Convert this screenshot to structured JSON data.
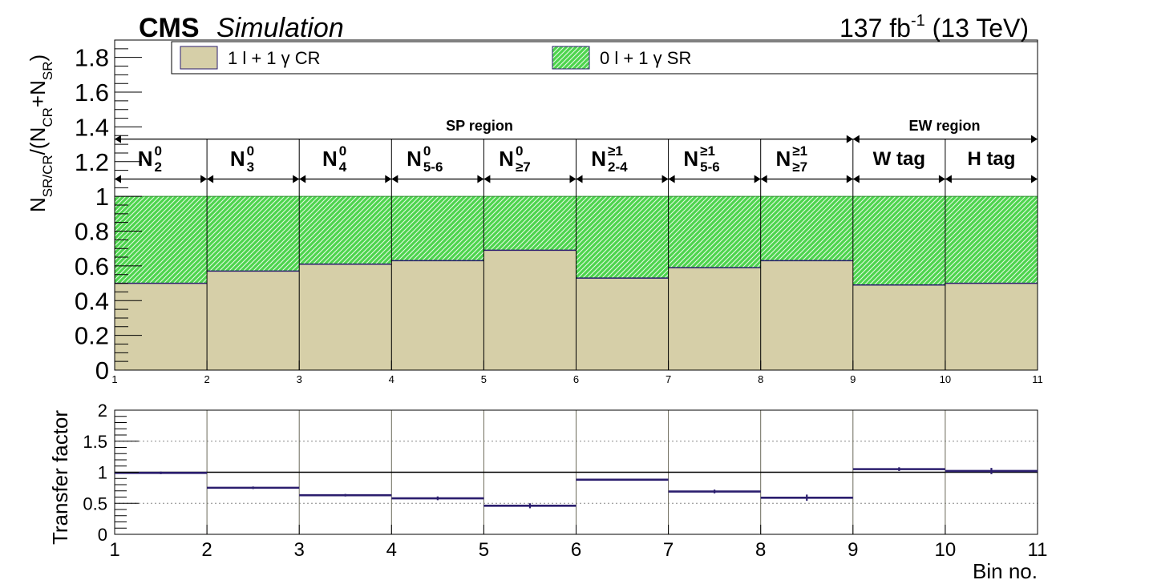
{
  "header": {
    "cms": "CMS",
    "simulation": "Simulation",
    "lumi_base": "137 fb",
    "lumi_sup": "-1",
    "lumi_energy": " (13 TeV)"
  },
  "legend": {
    "cr_label": "1 l + 1 γ CR",
    "sr_label": "0 l + 1 γ SR"
  },
  "regions": {
    "sp": "SP region",
    "ew": "EW region"
  },
  "bin_labels": [
    {
      "base": "N",
      "sup": "0",
      "sub": "2"
    },
    {
      "base": "N",
      "sup": "0",
      "sub": "3"
    },
    {
      "base": "N",
      "sup": "0",
      "sub": "4"
    },
    {
      "base": "N",
      "sup": "0",
      "sub": "5-6"
    },
    {
      "base": "N",
      "sup": "0",
      "sub": "≥7"
    },
    {
      "base": "N",
      "sup": "≥1",
      "sub": "2-4"
    },
    {
      "base": "N",
      "sup": "≥1",
      "sub": "5-6"
    },
    {
      "base": "N",
      "sup": "≥1",
      "sub": "≥7"
    },
    {
      "base": "W tag",
      "sup": "",
      "sub": ""
    },
    {
      "base": "H tag",
      "sup": "",
      "sub": ""
    }
  ],
  "colors": {
    "cr_fill": "#d6cfa8",
    "sr_fill": "#33cc33",
    "line": "#2b1e6e",
    "axis": "#000000"
  },
  "chart_data": [
    {
      "type": "bar",
      "stacked": true,
      "x_edges": [
        1,
        2,
        3,
        4,
        5,
        6,
        7,
        8,
        9,
        10,
        11
      ],
      "xtick_labels": [
        "1",
        "2",
        "3",
        "4",
        "5",
        "6",
        "7",
        "8",
        "9",
        "10",
        "11"
      ],
      "ylabel": "N_SR/CR/(N_CR+N_SR)",
      "ylim": [
        0,
        1.9
      ],
      "yticks": [
        0,
        0.2,
        0.4,
        0.6,
        0.8,
        1,
        1.2,
        1.4,
        1.6,
        1.8
      ],
      "ytick_labels": [
        "0",
        "0.2",
        "0.4",
        "0.6",
        "0.8",
        "1",
        "1.2",
        "1.4",
        "1.6",
        "1.8"
      ],
      "series": [
        {
          "name": "1 l + 1 γ CR",
          "values": [
            0.5,
            0.57,
            0.61,
            0.63,
            0.69,
            0.53,
            0.59,
            0.63,
            0.49,
            0.5
          ]
        },
        {
          "name": "0 l + 1 γ SR",
          "values": [
            0.5,
            0.43,
            0.39,
            0.37,
            0.31,
            0.47,
            0.41,
            0.37,
            0.51,
            0.5
          ]
        }
      ],
      "legend_position": "top"
    },
    {
      "type": "scatter",
      "x_edges": [
        1,
        2,
        3,
        4,
        5,
        6,
        7,
        8,
        9,
        10,
        11
      ],
      "x": [
        1.5,
        2.5,
        3.5,
        4.5,
        5.5,
        6.5,
        7.5,
        8.5,
        9.5,
        10.5
      ],
      "values": [
        0.99,
        0.75,
        0.63,
        0.58,
        0.46,
        0.88,
        0.69,
        0.59,
        1.05,
        1.02
      ],
      "errors": [
        0.02,
        0.02,
        0.02,
        0.03,
        0.04,
        0.01,
        0.03,
        0.05,
        0.03,
        0.05
      ],
      "ylabel": "Transfer factor",
      "xlabel": "Bin no.",
      "ylim": [
        0,
        2
      ],
      "yticks": [
        0,
        0.5,
        1,
        1.5,
        2
      ],
      "ytick_labels": [
        "0",
        "0.5",
        "1",
        "1.5",
        "2"
      ],
      "xtick_labels": [
        "1",
        "2",
        "3",
        "4",
        "5",
        "6",
        "7",
        "8",
        "9",
        "10",
        "11"
      ],
      "reference_line": 1,
      "grid": true
    }
  ]
}
